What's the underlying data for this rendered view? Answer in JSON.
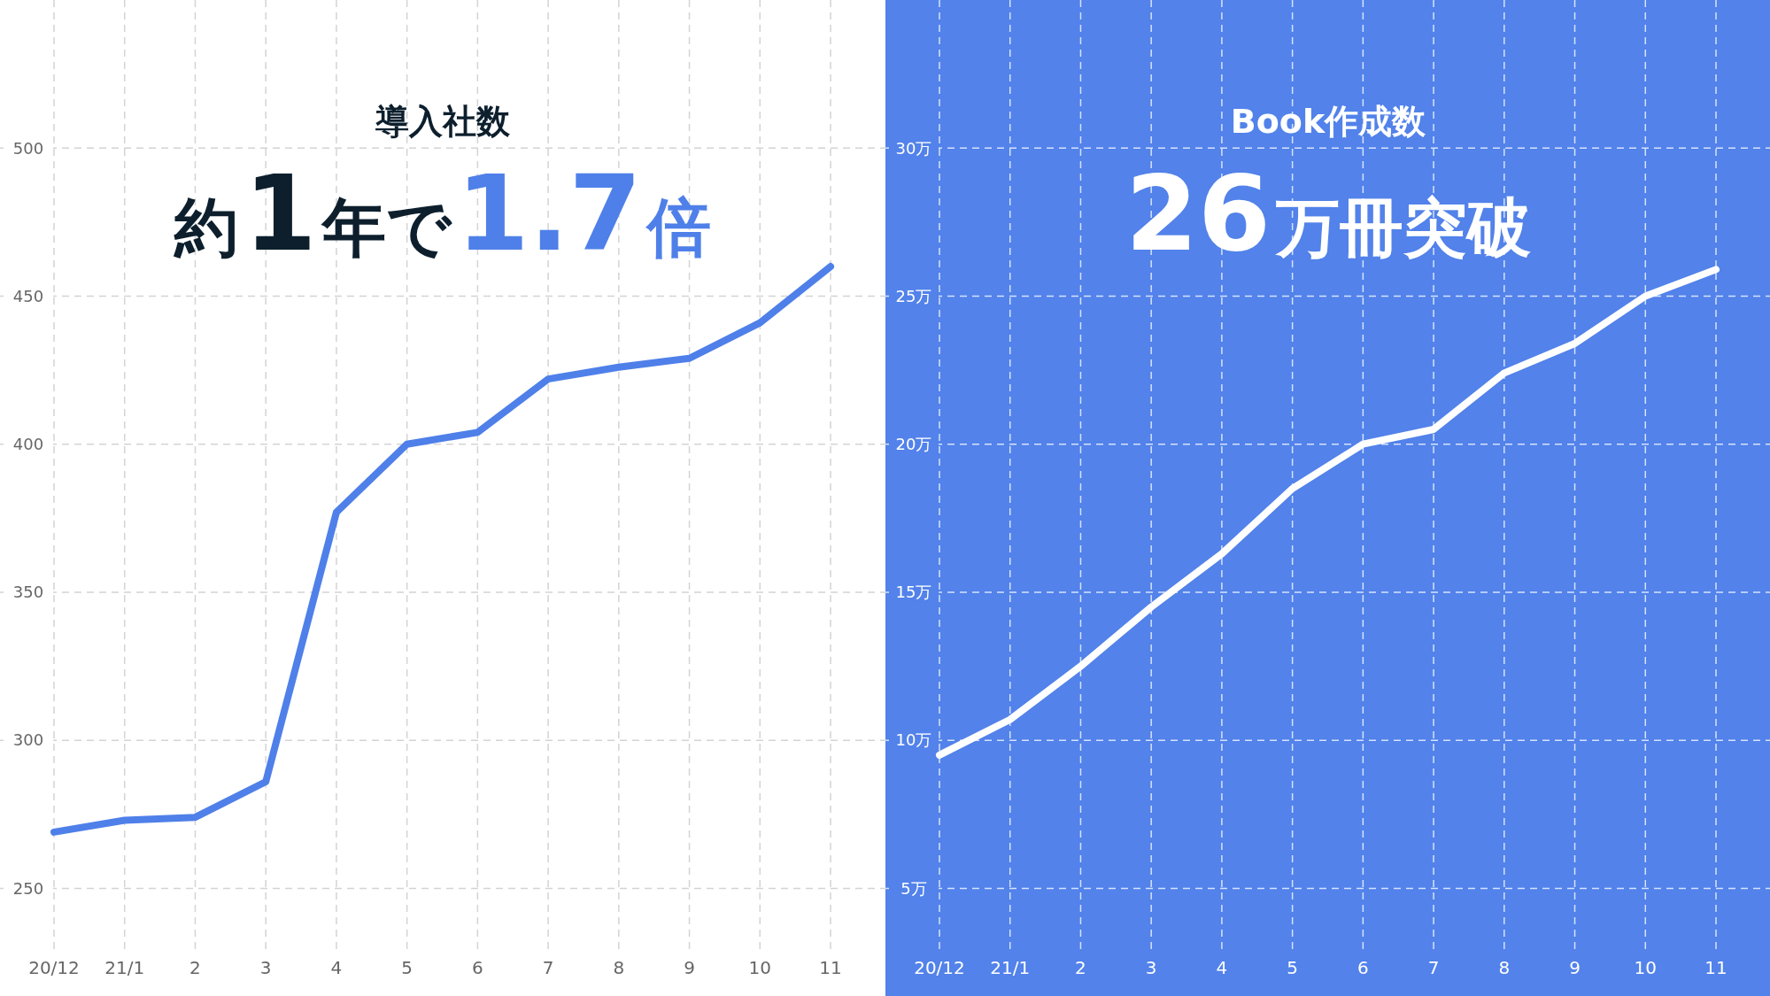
{
  "chart_data": [
    {
      "type": "line",
      "title": "導入社数",
      "subtitle": "約1年で1.7倍",
      "categories": [
        "20/12",
        "21/1",
        "2",
        "3",
        "4",
        "5",
        "6",
        "7",
        "8",
        "9",
        "10",
        "11"
      ],
      "series": [
        {
          "color": "#4f80e9",
          "values": [
            269,
            273,
            274,
            286,
            377,
            400,
            404,
            422,
            426,
            429,
            441,
            460
          ]
        }
      ],
      "ylim": [
        228,
        550
      ],
      "yticks": [
        250,
        300,
        350,
        400,
        450,
        500
      ],
      "grid": true
    },
    {
      "type": "line",
      "title": "Book作成数",
      "subtitle": "26万冊突破",
      "categories": [
        "20/12",
        "21/1",
        "2",
        "3",
        "4",
        "5",
        "6",
        "7",
        "8",
        "9",
        "10",
        "11"
      ],
      "series": [
        {
          "color": "#ffffff",
          "values": [
            9.5,
            10.7,
            12.5,
            14.5,
            16.3,
            18.5,
            20.0,
            20.5,
            22.4,
            23.4,
            25.0,
            25.9
          ]
        }
      ],
      "ylim": [
        2.8,
        35
      ],
      "yticks": [
        {
          "value": 5,
          "label": "5万"
        },
        {
          "value": 10,
          "label": "10万"
        },
        {
          "value": 15,
          "label": "15万"
        },
        {
          "value": 20,
          "label": "20万"
        },
        {
          "value": 25,
          "label": "25万"
        },
        {
          "value": 30,
          "label": "30万"
        }
      ],
      "grid": true
    }
  ]
}
